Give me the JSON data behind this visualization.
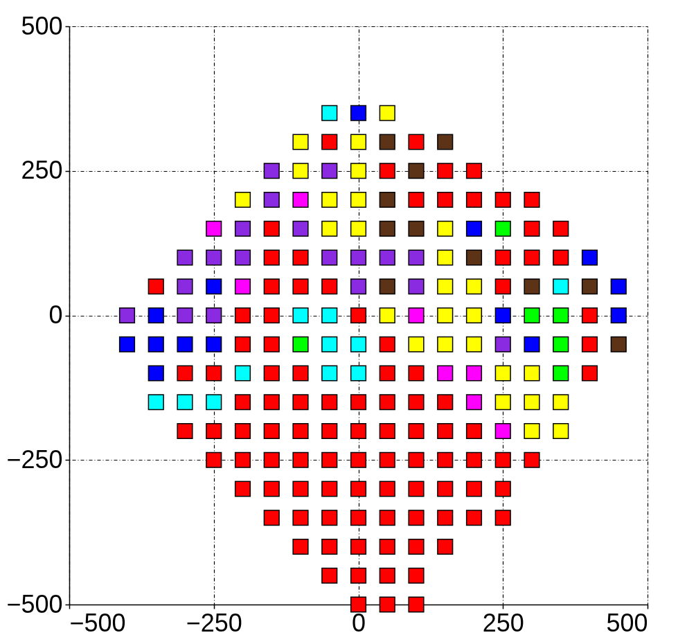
{
  "chart_data": {
    "type": "scatter",
    "marker": "square",
    "grid": true,
    "legend": false,
    "xlim": [
      -500,
      500
    ],
    "ylim": [
      -500,
      500
    ],
    "xticks": [
      -500,
      -250,
      0,
      250,
      500
    ],
    "yticks": [
      -500,
      -250,
      0,
      250,
      500
    ],
    "series": [
      {
        "color": "#ff0000",
        "x": [
          -50,
          100,
          50,
          150,
          200,
          100,
          150,
          200,
          250,
          300,
          -150,
          300,
          350,
          -150,
          -100,
          250,
          300,
          350,
          -350,
          -150,
          -100,
          -50,
          250,
          -200,
          -150,
          0,
          400,
          -200,
          -150,
          50,
          400,
          -300,
          -250,
          -150,
          -100,
          50,
          100,
          400,
          -200,
          -150,
          -100,
          -50,
          0,
          50,
          100,
          150,
          -300,
          -250,
          -200,
          -150,
          -100,
          -50,
          0,
          50,
          100,
          150,
          200,
          -250,
          -200,
          -150,
          -100,
          -50,
          0,
          50,
          100,
          150,
          200,
          250,
          300,
          -200,
          -150,
          -100,
          -50,
          0,
          50,
          100,
          150,
          200,
          250,
          -150,
          -100,
          -50,
          0,
          50,
          100,
          150,
          200,
          250,
          -100,
          -50,
          0,
          50,
          100,
          150,
          -50,
          0,
          50,
          100,
          0,
          50,
          100
        ],
        "values": [
          300,
          300,
          250,
          250,
          250,
          200,
          200,
          200,
          200,
          200,
          150,
          150,
          150,
          100,
          100,
          100,
          100,
          100,
          50,
          50,
          50,
          50,
          50,
          0,
          0,
          0,
          0,
          -50,
          -50,
          -50,
          -50,
          -100,
          -100,
          -100,
          -100,
          -100,
          -100,
          -100,
          -150,
          -150,
          -150,
          -150,
          -150,
          -150,
          -150,
          -150,
          -200,
          -200,
          -200,
          -200,
          -200,
          -200,
          -200,
          -200,
          -200,
          -200,
          -200,
          -250,
          -250,
          -250,
          -250,
          -250,
          -250,
          -250,
          -250,
          -250,
          -250,
          -250,
          -250,
          -300,
          -300,
          -300,
          -300,
          -300,
          -300,
          -300,
          -300,
          -300,
          -300,
          -350,
          -350,
          -350,
          -350,
          -350,
          -350,
          -350,
          -350,
          -350,
          -400,
          -400,
          -400,
          -400,
          -400,
          -400,
          -450,
          -450,
          -450,
          -450,
          -500,
          -500,
          -500
        ]
      },
      {
        "color": "#ffff00",
        "x": [
          50,
          -100,
          0,
          -100,
          0,
          -200,
          -50,
          0,
          -50,
          0,
          150,
          150,
          150,
          200,
          50,
          150,
          200,
          100,
          150,
          200,
          250,
          300,
          250,
          300,
          350,
          300,
          350
        ],
        "values": [
          350,
          300,
          300,
          250,
          250,
          200,
          200,
          200,
          150,
          150,
          150,
          100,
          50,
          50,
          0,
          0,
          0,
          -50,
          -50,
          -50,
          -100,
          -100,
          -150,
          -150,
          -150,
          -200,
          -200
        ]
      },
      {
        "color": "#8a2be2",
        "x": [
          -150,
          -50,
          -150,
          -200,
          -100,
          -300,
          -250,
          -200,
          -50,
          0,
          50,
          100,
          -300,
          0,
          100,
          -400,
          -300,
          -250,
          250
        ],
        "values": [
          250,
          250,
          200,
          150,
          150,
          100,
          100,
          100,
          100,
          100,
          100,
          100,
          50,
          50,
          50,
          0,
          0,
          0,
          -50
        ]
      },
      {
        "color": "#5c3317",
        "x": [
          50,
          150,
          100,
          50,
          50,
          100,
          200,
          50,
          300,
          400,
          450
        ],
        "values": [
          300,
          300,
          250,
          200,
          150,
          150,
          100,
          50,
          50,
          50,
          -50
        ]
      },
      {
        "color": "#0000ff",
        "x": [
          0,
          200,
          400,
          -250,
          450,
          -350,
          250,
          450,
          -400,
          -350,
          -300,
          -250,
          300,
          -350
        ],
        "values": [
          350,
          150,
          100,
          50,
          50,
          0,
          0,
          0,
          -50,
          -50,
          -50,
          -50,
          -50,
          -100
        ]
      },
      {
        "color": "#00ffff",
        "x": [
          -50,
          350,
          -100,
          -50,
          -50,
          0,
          -200,
          -50,
          0,
          -350,
          -300,
          -250
        ],
        "values": [
          350,
          50,
          0,
          0,
          -50,
          -50,
          -100,
          -100,
          -100,
          -150,
          -150,
          -150
        ]
      },
      {
        "color": "#ff00ff",
        "x": [
          -100,
          -250,
          -200,
          100,
          150,
          200,
          200,
          250
        ],
        "values": [
          200,
          150,
          50,
          0,
          -100,
          -100,
          -150,
          -200
        ]
      },
      {
        "color": "#00ff00",
        "x": [
          250,
          300,
          350,
          -100,
          350,
          350
        ],
        "values": [
          150,
          0,
          0,
          -50,
          -50,
          -100
        ]
      }
    ]
  }
}
